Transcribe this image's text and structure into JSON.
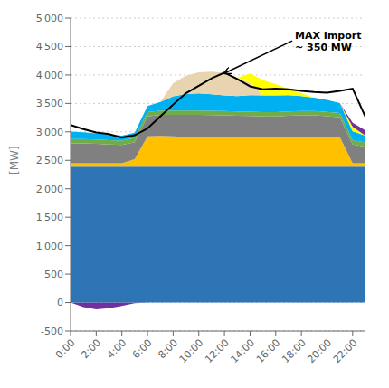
{
  "chart_data": {
    "type": "area",
    "stacked": true,
    "ylabel": "[MW]",
    "grid": true,
    "x": [
      0,
      1,
      2,
      3,
      4,
      5,
      6,
      7,
      8,
      9,
      10,
      11,
      12,
      13,
      14,
      15,
      16,
      17,
      18,
      19,
      20,
      21,
      22,
      23
    ],
    "xlim": [
      0,
      23
    ],
    "xticks": [
      {
        "value": 0,
        "label": "0:00"
      },
      {
        "value": 2,
        "label": "2:00"
      },
      {
        "value": 4,
        "label": "4:00"
      },
      {
        "value": 6,
        "label": "6:00"
      },
      {
        "value": 8,
        "label": "8:00"
      },
      {
        "value": 10,
        "label": "10:00"
      },
      {
        "value": 12,
        "label": "12:00"
      },
      {
        "value": 14,
        "label": "14:00"
      },
      {
        "value": 16,
        "label": "16:00"
      },
      {
        "value": 18,
        "label": "18:00"
      },
      {
        "value": 20,
        "label": "20:00"
      },
      {
        "value": 22,
        "label": "22:00"
      }
    ],
    "ylim": [
      -500,
      5000
    ],
    "yticks": [
      -500,
      0,
      500,
      {
        "value": 1000,
        "label": "1 000"
      },
      {
        "value": 1500,
        "label": "1 500"
      },
      {
        "value": 2000,
        "label": "2 000"
      },
      {
        "value": 2500,
        "label": "2 500"
      },
      {
        "value": 3000,
        "label": "3 000"
      },
      {
        "value": 3500,
        "label": "3 500"
      },
      {
        "value": 4000,
        "label": "4 000"
      },
      {
        "value": 4500,
        "label": "4 500"
      },
      {
        "value": 5000,
        "label": "5 000"
      }
    ],
    "series": [
      {
        "type": "area",
        "color": "#7030A0",
        "values": [
          0,
          -80,
          -120,
          -100,
          -60,
          -10,
          0,
          0,
          0,
          0,
          0,
          0,
          0,
          0,
          0,
          0,
          0,
          0,
          0,
          0,
          0,
          0,
          0,
          0
        ]
      },
      {
        "type": "area",
        "color": "#2E75B6",
        "values": [
          2390,
          2390,
          2390,
          2390,
          2390,
          2390,
          2390,
          2390,
          2390,
          2390,
          2390,
          2390,
          2390,
          2390,
          2390,
          2390,
          2390,
          2390,
          2390,
          2390,
          2390,
          2390,
          2390,
          2390
        ]
      },
      {
        "type": "area",
        "color": "#FFC000",
        "values": [
          60,
          60,
          60,
          60,
          60,
          130,
          530,
          540,
          530,
          520,
          520,
          520,
          520,
          520,
          520,
          520,
          520,
          520,
          520,
          520,
          520,
          520,
          60,
          60
        ]
      },
      {
        "type": "area",
        "color": "#808080",
        "values": [
          350,
          350,
          340,
          330,
          320,
          300,
          350,
          370,
          380,
          390,
          390,
          385,
          380,
          375,
          370,
          360,
          360,
          375,
          380,
          380,
          365,
          345,
          330,
          290
        ]
      },
      {
        "type": "area",
        "color": "#70AD47",
        "values": [
          75,
          75,
          75,
          75,
          75,
          75,
          75,
          75,
          75,
          75,
          75,
          75,
          75,
          75,
          75,
          75,
          75,
          75,
          75,
          75,
          75,
          75,
          75,
          75
        ]
      },
      {
        "type": "area",
        "color": "#00B0F0",
        "values": [
          130,
          120,
          110,
          100,
          90,
          90,
          110,
          150,
          250,
          290,
          300,
          290,
          275,
          270,
          290,
          295,
          295,
          285,
          265,
          235,
          210,
          175,
          155,
          120
        ]
      },
      {
        "type": "area",
        "color": "#E8D5B0",
        "values": [
          0,
          0,
          0,
          0,
          0,
          0,
          0,
          0,
          230,
          320,
          370,
          400,
          400,
          320,
          220,
          0,
          0,
          0,
          0,
          0,
          0,
          0,
          0,
          0
        ]
      },
      {
        "type": "area",
        "color": "#FFFF00",
        "values": [
          0,
          0,
          0,
          0,
          0,
          0,
          0,
          0,
          0,
          0,
          0,
          0,
          0,
          0,
          160,
          270,
          200,
          110,
          50,
          0,
          0,
          0,
          80,
          0
        ]
      },
      {
        "type": "area",
        "color": "#7030A0",
        "values": [
          0,
          0,
          0,
          0,
          0,
          0,
          0,
          0,
          0,
          0,
          0,
          0,
          0,
          0,
          0,
          0,
          0,
          0,
          0,
          0,
          0,
          0,
          70,
          90
        ]
      },
      {
        "type": "line",
        "color": "black",
        "values": [
          3120,
          3050,
          2990,
          2960,
          2900,
          2940,
          3060,
          3270,
          3480,
          3680,
          3810,
          3940,
          4040,
          3930,
          3800,
          3750,
          3760,
          3750,
          3720,
          3700,
          3690,
          3720,
          3760,
          3260
        ]
      }
    ],
    "annotations": [
      {
        "text": "MAX Import\n~ 350 MW",
        "x": 12.0,
        "y": 4030,
        "text_x": 17.5,
        "text_y": 4600
      }
    ]
  }
}
